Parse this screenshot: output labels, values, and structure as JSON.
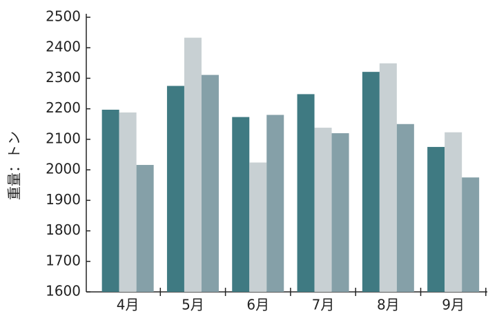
{
  "chart_data": {
    "type": "bar",
    "y_label": "重量：トン",
    "categories": [
      "4月",
      "5月",
      "6月",
      "7月",
      "8月",
      "9月"
    ],
    "series": [
      {
        "color": "#3f7a82",
        "values": [
          2197,
          2275,
          2173,
          2248,
          2321,
          2075
        ]
      },
      {
        "color": "#c8d0d3",
        "values": [
          2188,
          2433,
          2024,
          2138,
          2349,
          2123
        ]
      },
      {
        "color": "#85a0a8",
        "values": [
          2016,
          2311,
          2180,
          2120,
          2150,
          1975
        ]
      }
    ],
    "ylim": [
      1600,
      2500
    ],
    "yticks": [
      1600,
      1700,
      1800,
      1900,
      2000,
      2100,
      2200,
      2300,
      2400,
      2500
    ]
  }
}
